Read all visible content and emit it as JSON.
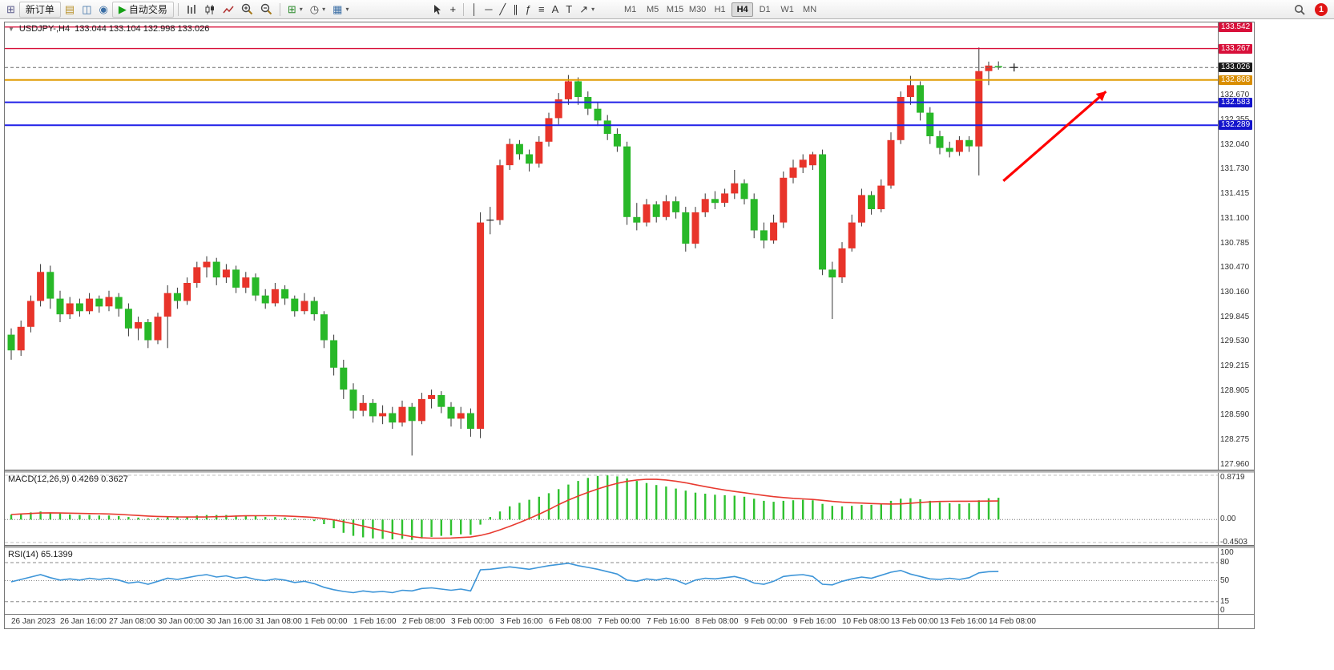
{
  "toolbar": {
    "new_order_label": "新订单",
    "auto_trading_label": "自动交易",
    "notification_count": "1",
    "timeframes": [
      "M1",
      "M5",
      "M15",
      "M30",
      "H1",
      "H4",
      "D1",
      "W1",
      "MN"
    ],
    "active_timeframe": "H4",
    "items": [
      {
        "type": "icon",
        "name": "chart-window-icon"
      },
      {
        "type": "button",
        "name": "new-order-button",
        "label": "新订单"
      },
      {
        "type": "icon",
        "name": "profiles-icon"
      },
      {
        "type": "icon",
        "name": "market-watch-icon"
      },
      {
        "type": "icon",
        "name": "navigator-icon"
      },
      {
        "type": "button",
        "name": "auto-trading-button",
        "label": "自动交易"
      },
      {
        "type": "sep"
      },
      {
        "type": "icon",
        "name": "bar-chart-icon"
      },
      {
        "type": "icon",
        "name": "candlestick-chart-icon"
      },
      {
        "type": "icon",
        "name": "line-chart-icon"
      },
      {
        "type": "icon",
        "name": "zoom-in-icon"
      },
      {
        "type": "icon",
        "name": "zoom-out-icon"
      },
      {
        "type": "sep"
      },
      {
        "type": "icon",
        "name": "new-chart-icon",
        "caret": true
      },
      {
        "type": "icon",
        "name": "period-icon",
        "caret": true
      },
      {
        "type": "icon",
        "name": "template-icon",
        "caret": true
      },
      {
        "type": "space",
        "w": 95
      },
      {
        "type": "icon",
        "name": "cursor-icon"
      },
      {
        "type": "icon",
        "name": "crosshair-icon"
      },
      {
        "type": "sep"
      },
      {
        "type": "icon",
        "name": "vertical-line-icon"
      },
      {
        "type": "icon",
        "name": "horizontal-line-icon"
      },
      {
        "type": "icon",
        "name": "trendline-icon"
      },
      {
        "type": "icon",
        "name": "channel-icon"
      },
      {
        "type": "icon",
        "name": "fibonacci-icon"
      },
      {
        "type": "icon",
        "name": "shapes-icon"
      },
      {
        "type": "icon",
        "name": "text-icon"
      },
      {
        "type": "icon",
        "name": "label-icon"
      },
      {
        "type": "icon",
        "name": "arrows-icon",
        "caret": true
      },
      {
        "type": "space",
        "w": 25
      },
      {
        "type": "timeframes"
      }
    ]
  },
  "chart": {
    "collapse_arrow": "▼",
    "symbol_label": "USDJPY-,H4",
    "ohlc_label": "133.044 133.104 132.998 133.026",
    "macd_label": "MACD(12,26,9) 0.4269 0.3627",
    "rsi_label": "RSI(14) 65.1399"
  },
  "chart_data": {
    "type": "candlestick",
    "symbol": "USDJPY",
    "timeframe": "H4",
    "ohlc": {
      "open": 133.044,
      "high": 133.104,
      "low": 132.998,
      "close": 133.026
    },
    "colors": {
      "up": "#e8342a",
      "down": "#28b828",
      "wick": "#333333",
      "macd": "#2fc12f",
      "macd_signal": "#e83a30",
      "rsi": "#3d95d8"
    },
    "price_axis": {
      "max": 133.6,
      "min": 127.9,
      "ticks": [
        "132.670",
        "132.355",
        "132.040",
        "131.730",
        "131.415",
        "131.100",
        "130.785",
        "130.470",
        "130.160",
        "129.845",
        "129.530",
        "129.215",
        "128.905",
        "128.590",
        "128.275",
        "127.960"
      ],
      "highlights": [
        {
          "text": "133.542",
          "bg": "#d8103a"
        },
        {
          "text": "133.267",
          "bg": "#d8103a"
        },
        {
          "text": "133.026",
          "bg": "#1a1a1a"
        },
        {
          "text": "132.868",
          "bg": "#d98e00"
        },
        {
          "text": "132.583",
          "bg": "#1414cc"
        },
        {
          "text": "132.289",
          "bg": "#1414cc"
        }
      ]
    },
    "hlines": [
      {
        "price": 133.542,
        "color": "#d8103a",
        "width": 1.4
      },
      {
        "price": 133.267,
        "color": "#d8103a",
        "width": 1.4
      },
      {
        "price": 133.026,
        "color": "#6a6a6a",
        "width": 1,
        "dash": "4,3"
      },
      {
        "price": 132.868,
        "color": "#e09b00",
        "width": 2
      },
      {
        "price": 132.583,
        "color": "#2020e8",
        "width": 2
      },
      {
        "price": 132.289,
        "color": "#2020e8",
        "width": 2
      }
    ],
    "arrow": {
      "color": "#ff0000",
      "from": {
        "index": 101.5,
        "price": 131.58
      },
      "to": {
        "index": 112,
        "price": 132.72
      }
    },
    "price_pointer": {
      "index": 102.6,
      "price": 133.026
    },
    "candles": [
      [
        129.62,
        129.7,
        129.3,
        129.42
      ],
      [
        129.42,
        129.8,
        129.35,
        129.72
      ],
      [
        129.72,
        130.12,
        129.65,
        130.05
      ],
      [
        130.05,
        130.52,
        129.98,
        130.42
      ],
      [
        130.42,
        130.5,
        129.95,
        130.08
      ],
      [
        130.08,
        130.18,
        129.78,
        129.88
      ],
      [
        129.88,
        130.1,
        129.82,
        130.02
      ],
      [
        130.02,
        130.08,
        129.85,
        129.92
      ],
      [
        129.92,
        130.15,
        129.88,
        130.08
      ],
      [
        130.08,
        130.12,
        129.9,
        129.98
      ],
      [
        129.98,
        130.18,
        129.92,
        130.1
      ],
      [
        130.1,
        130.15,
        129.85,
        129.95
      ],
      [
        129.95,
        130.02,
        129.6,
        129.7
      ],
      [
        129.7,
        129.85,
        129.55,
        129.78
      ],
      [
        129.78,
        129.82,
        129.45,
        129.55
      ],
      [
        129.55,
        129.9,
        129.5,
        129.85
      ],
      [
        129.85,
        130.25,
        129.45,
        130.15
      ],
      [
        130.15,
        130.22,
        129.95,
        130.05
      ],
      [
        130.05,
        130.35,
        130.0,
        130.28
      ],
      [
        130.28,
        130.55,
        130.22,
        130.48
      ],
      [
        130.48,
        130.62,
        130.35,
        130.55
      ],
      [
        130.55,
        130.6,
        130.25,
        130.35
      ],
      [
        130.35,
        130.52,
        130.28,
        130.45
      ],
      [
        130.45,
        130.5,
        130.15,
        130.22
      ],
      [
        130.22,
        130.42,
        130.15,
        130.35
      ],
      [
        130.35,
        130.4,
        130.05,
        130.12
      ],
      [
        130.12,
        130.2,
        129.95,
        130.02
      ],
      [
        130.02,
        130.28,
        129.98,
        130.2
      ],
      [
        130.2,
        130.25,
        130.0,
        130.08
      ],
      [
        130.08,
        130.12,
        129.85,
        129.92
      ],
      [
        129.92,
        130.15,
        129.88,
        130.05
      ],
      [
        130.05,
        130.1,
        129.8,
        129.88
      ],
      [
        129.88,
        129.92,
        129.45,
        129.55
      ],
      [
        129.55,
        129.62,
        129.1,
        129.2
      ],
      [
        129.2,
        129.3,
        128.8,
        128.92
      ],
      [
        128.92,
        129.0,
        128.55,
        128.65
      ],
      [
        128.65,
        128.85,
        128.58,
        128.75
      ],
      [
        128.75,
        128.8,
        128.5,
        128.58
      ],
      [
        128.58,
        128.72,
        128.48,
        128.62
      ],
      [
        128.62,
        128.7,
        128.42,
        128.5
      ],
      [
        128.5,
        128.78,
        128.45,
        128.7
      ],
      [
        128.7,
        128.75,
        128.08,
        128.52
      ],
      [
        128.52,
        128.88,
        128.48,
        128.8
      ],
      [
        128.8,
        128.92,
        128.68,
        128.85
      ],
      [
        128.85,
        128.9,
        128.62,
        128.7
      ],
      [
        128.7,
        128.76,
        128.45,
        128.55
      ],
      [
        128.55,
        128.7,
        128.42,
        128.62
      ],
      [
        128.62,
        128.68,
        128.32,
        128.42
      ],
      [
        128.42,
        131.18,
        128.3,
        131.05
      ],
      [
        131.08,
        131.25,
        130.9,
        131.08
      ],
      [
        131.08,
        131.85,
        131.02,
        131.78
      ],
      [
        131.78,
        132.12,
        131.72,
        132.05
      ],
      [
        132.05,
        132.1,
        131.85,
        131.92
      ],
      [
        131.92,
        131.98,
        131.7,
        131.8
      ],
      [
        131.8,
        132.15,
        131.75,
        132.08
      ],
      [
        132.08,
        132.45,
        132.02,
        132.38
      ],
      [
        132.38,
        132.7,
        132.3,
        132.62
      ],
      [
        132.62,
        132.93,
        132.55,
        132.85
      ],
      [
        132.85,
        132.9,
        132.55,
        132.65
      ],
      [
        132.65,
        132.72,
        132.42,
        132.5
      ],
      [
        132.5,
        132.58,
        132.28,
        132.35
      ],
      [
        132.35,
        132.42,
        132.1,
        132.18
      ],
      [
        132.18,
        132.25,
        131.95,
        132.02
      ],
      [
        132.02,
        132.08,
        131.02,
        131.12
      ],
      [
        131.12,
        131.3,
        130.95,
        131.05
      ],
      [
        131.05,
        131.35,
        131.0,
        131.28
      ],
      [
        131.28,
        131.32,
        131.05,
        131.12
      ],
      [
        131.12,
        131.4,
        131.08,
        131.32
      ],
      [
        131.32,
        131.38,
        131.1,
        131.18
      ],
      [
        131.18,
        131.25,
        130.68,
        130.78
      ],
      [
        130.78,
        131.25,
        130.72,
        131.18
      ],
      [
        131.18,
        131.42,
        131.12,
        131.35
      ],
      [
        131.35,
        131.45,
        131.22,
        131.3
      ],
      [
        131.3,
        131.48,
        131.25,
        131.42
      ],
      [
        131.42,
        131.72,
        131.35,
        131.55
      ],
      [
        131.55,
        131.6,
        131.28,
        131.35
      ],
      [
        131.35,
        131.42,
        130.85,
        130.95
      ],
      [
        130.95,
        131.05,
        130.72,
        130.82
      ],
      [
        130.82,
        131.15,
        130.78,
        131.05
      ],
      [
        131.05,
        131.7,
        130.98,
        131.62
      ],
      [
        131.62,
        131.85,
        131.55,
        131.75
      ],
      [
        131.75,
        131.92,
        131.68,
        131.85
      ],
      [
        131.78,
        131.95,
        131.72,
        131.92
      ],
      [
        131.92,
        131.98,
        130.38,
        130.45
      ],
      [
        130.45,
        130.55,
        129.82,
        130.35
      ],
      [
        130.35,
        130.8,
        130.28,
        130.72
      ],
      [
        130.72,
        131.15,
        130.68,
        131.05
      ],
      [
        131.05,
        131.48,
        131.0,
        131.4
      ],
      [
        131.4,
        131.45,
        131.15,
        131.22
      ],
      [
        131.22,
        131.6,
        131.18,
        131.52
      ],
      [
        131.52,
        132.2,
        131.48,
        132.1
      ],
      [
        132.1,
        132.72,
        132.05,
        132.65
      ],
      [
        132.65,
        132.92,
        132.55,
        132.8
      ],
      [
        132.8,
        132.85,
        132.35,
        132.45
      ],
      [
        132.45,
        132.52,
        132.05,
        132.15
      ],
      [
        132.15,
        132.22,
        131.92,
        132.0
      ],
      [
        132.0,
        132.08,
        131.88,
        131.95
      ],
      [
        131.95,
        132.15,
        131.9,
        132.1
      ],
      [
        132.1,
        132.15,
        131.95,
        132.02
      ],
      [
        132.02,
        133.28,
        131.65,
        132.98
      ],
      [
        132.98,
        133.1,
        132.8,
        133.05
      ],
      [
        133.044,
        133.104,
        132.998,
        133.026
      ]
    ],
    "macd": {
      "ymax": 0.92,
      "ymin": -0.5,
      "ticks": [
        "0.8719",
        "0.00",
        "-0.4503"
      ],
      "hist": [
        0.1,
        0.12,
        0.14,
        0.16,
        0.14,
        0.12,
        0.1,
        0.09,
        0.09,
        0.08,
        0.08,
        0.07,
        0.05,
        0.04,
        0.02,
        0.03,
        0.05,
        0.05,
        0.06,
        0.08,
        0.09,
        0.09,
        0.09,
        0.08,
        0.08,
        0.07,
        0.05,
        0.05,
        0.04,
        0.02,
        0.01,
        -0.03,
        -0.09,
        -0.17,
        -0.26,
        -0.32,
        -0.35,
        -0.37,
        -0.38,
        -0.39,
        -0.38,
        -0.4,
        -0.37,
        -0.34,
        -0.32,
        -0.31,
        -0.29,
        -0.3,
        -0.1,
        0.05,
        0.16,
        0.26,
        0.33,
        0.39,
        0.45,
        0.52,
        0.6,
        0.69,
        0.76,
        0.82,
        0.86,
        0.87,
        0.85,
        0.81,
        0.76,
        0.72,
        0.68,
        0.65,
        0.61,
        0.57,
        0.53,
        0.51,
        0.49,
        0.48,
        0.47,
        0.45,
        0.41,
        0.37,
        0.35,
        0.37,
        0.38,
        0.39,
        0.38,
        0.31,
        0.27,
        0.26,
        0.27,
        0.29,
        0.29,
        0.32,
        0.37,
        0.41,
        0.42,
        0.4,
        0.37,
        0.34,
        0.32,
        0.31,
        0.32,
        0.38,
        0.42,
        0.43
      ]
    },
    "rsi": {
      "ymax": 100,
      "ymin": 0,
      "ticks": [
        "100",
        "80",
        "50",
        "15",
        "0"
      ],
      "levels": [
        80,
        50,
        15
      ],
      "values": [
        48,
        52,
        56,
        60,
        55,
        51,
        53,
        51,
        54,
        52,
        54,
        51,
        46,
        48,
        44,
        49,
        54,
        52,
        55,
        58,
        60,
        56,
        58,
        54,
        56,
        52,
        50,
        53,
        51,
        47,
        49,
        45,
        39,
        35,
        32,
        30,
        33,
        31,
        32,
        30,
        34,
        33,
        37,
        38,
        36,
        34,
        36,
        33,
        68,
        69,
        71,
        73,
        71,
        69,
        72,
        75,
        77,
        79,
        75,
        72,
        69,
        65,
        61,
        51,
        49,
        53,
        51,
        54,
        51,
        44,
        51,
        54,
        53,
        55,
        57,
        53,
        46,
        44,
        49,
        57,
        59,
        60,
        57,
        44,
        43,
        49,
        53,
        56,
        54,
        59,
        64,
        67,
        61,
        57,
        53,
        52,
        54,
        52,
        55,
        63,
        65,
        65.14
      ]
    },
    "time_labels": [
      "26 Jan 2023",
      "26 Jan 16:00",
      "27 Jan 08:00",
      "30 Jan 00:00",
      "30 Jan 16:00",
      "31 Jan 08:00",
      "1 Feb 00:00",
      "1 Feb 16:00",
      "2 Feb 08:00",
      "3 Feb 00:00",
      "3 Feb 16:00",
      "6 Feb 08:00",
      "7 Feb 00:00",
      "7 Feb 16:00",
      "8 Feb 08:00",
      "9 Feb 00:00",
      "9 Feb 16:00",
      "10 Feb 08:00",
      "13 Feb 00:00",
      "13 Feb 16:00",
      "14 Feb 08:00"
    ],
    "label_every": 5
  }
}
